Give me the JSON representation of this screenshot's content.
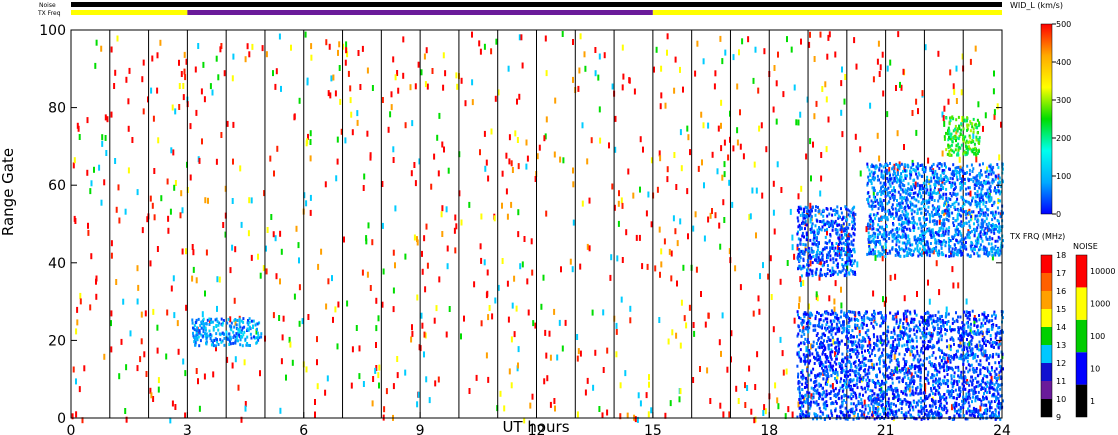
{
  "chart_data": {
    "type": "heatmap",
    "xlabel": "UT hours",
    "ylabel": "Range Gate",
    "xlim": [
      0,
      24
    ],
    "ylim": [
      0,
      100
    ],
    "x_ticks": [
      0,
      3,
      6,
      9,
      12,
      15,
      18,
      21,
      24
    ],
    "y_ticks": [
      0,
      20,
      40,
      60,
      80,
      100
    ],
    "noise_label": "Noise",
    "txfreq_label": "TX Freq",
    "tx_freq_track": [
      {
        "from": 0,
        "to": 3,
        "color": "#ffff00"
      },
      {
        "from": 3,
        "to": 15,
        "color": "#6a1b9a"
      },
      {
        "from": 15,
        "to": 24,
        "color": "#ffff00"
      }
    ],
    "width_scale": {
      "title": "WID_L (km/s)",
      "min": 0,
      "max": 500,
      "ticks": [
        0,
        100,
        200,
        300,
        400,
        500
      ]
    },
    "tx_freq_scale": {
      "title": "TX FRQ (MHz)",
      "ticks": [
        9,
        10,
        11,
        12,
        13,
        14,
        15,
        16,
        17,
        18
      ]
    },
    "noise_scale": {
      "title": "NOISE",
      "ticks": [
        1,
        10,
        100,
        1000,
        10000
      ]
    },
    "scatter_regions": [
      {
        "name": "gate-20 echo",
        "x": [
          3.1,
          4.9
        ],
        "y": [
          19,
          26
        ],
        "value": 80
      },
      {
        "name": "evening band 1",
        "x": [
          18.7,
          20.2
        ],
        "y": [
          37,
          55
        ],
        "value": 40
      },
      {
        "name": "evening band 2",
        "x": [
          18.7,
          24
        ],
        "y": [
          0,
          28
        ],
        "value": 30
      },
      {
        "name": "late high gates",
        "x": [
          20.5,
          24
        ],
        "y": [
          42,
          66
        ],
        "value": 60
      },
      {
        "name": "upper patch",
        "x": [
          22.5,
          23.4
        ],
        "y": [
          68,
          78
        ],
        "value": 250
      }
    ],
    "colors": {
      "wid_gradient": [
        "#0000ff",
        "#00aaff",
        "#00ffee",
        "#00dd00",
        "#ffff00",
        "#ffaa00",
        "#ff0000"
      ],
      "tx_freq_colors": [
        "#000000",
        "#6a1b9a",
        "#1010d0",
        "#00c8ff",
        "#00d000",
        "#ffff00",
        "#ffa000",
        "#ff6000",
        "#ff0000"
      ],
      "noise_colors": [
        "#000000",
        "#0000ff",
        "#00cc00",
        "#ffff00",
        "#ff0000"
      ]
    }
  }
}
